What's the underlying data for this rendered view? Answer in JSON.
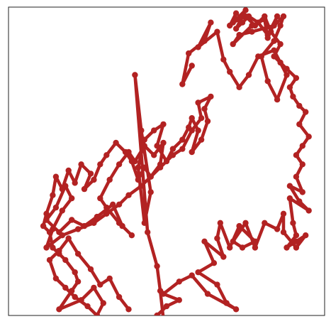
{
  "chart_data": {
    "type": "line",
    "title": "",
    "xlabel": "",
    "ylabel": "",
    "xlim": [
      0,
      100
    ],
    "ylim": [
      0,
      100
    ],
    "grid": false,
    "legend": "none",
    "axes_ticks_visible": false,
    "series": [
      {
        "color": "#b22222",
        "marker": "circle",
        "points": [
          [
            58,
            19
          ],
          [
            55,
            25
          ],
          [
            57,
            15
          ],
          [
            62,
            11
          ],
          [
            64,
            5
          ],
          [
            60,
            13
          ],
          [
            66,
            8
          ],
          [
            68,
            17
          ],
          [
            70,
            21
          ],
          [
            73,
            26
          ],
          [
            76,
            22
          ],
          [
            79,
            16
          ],
          [
            84,
            14
          ],
          [
            88,
            22
          ],
          [
            85,
            30
          ],
          [
            82,
            24
          ],
          [
            80,
            16
          ],
          [
            84,
            11
          ],
          [
            86,
            6
          ],
          [
            87,
            3
          ],
          [
            84,
            6
          ],
          [
            77,
            8
          ],
          [
            73,
            9
          ],
          [
            71,
            12
          ],
          [
            77,
            6
          ],
          [
            81,
            4
          ],
          [
            82,
            10
          ],
          [
            85,
            3
          ],
          [
            82,
            9
          ],
          [
            79,
            5
          ],
          [
            76,
            3
          ],
          [
            74,
            5
          ],
          [
            72,
            7
          ],
          [
            75,
            1
          ],
          [
            70,
            6
          ],
          [
            72,
            2
          ],
          [
            71,
            5
          ],
          [
            75,
            3
          ],
          [
            78,
            6
          ],
          [
            81,
            3
          ],
          [
            83,
            8
          ],
          [
            86,
            12
          ],
          [
            84,
            16
          ],
          [
            86,
            18
          ],
          [
            88,
            20
          ],
          [
            91,
            23
          ],
          [
            89,
            26
          ],
          [
            90,
            29
          ],
          [
            92,
            32
          ],
          [
            94,
            34
          ],
          [
            92,
            38
          ],
          [
            95,
            42
          ],
          [
            93,
            45
          ],
          [
            91,
            48
          ],
          [
            93,
            51
          ],
          [
            91,
            55
          ],
          [
            93,
            60
          ],
          [
            89,
            58
          ],
          [
            92,
            63
          ],
          [
            95,
            66
          ],
          [
            89,
            62
          ],
          [
            90,
            70
          ],
          [
            91,
            74
          ],
          [
            88,
            78
          ],
          [
            91,
            76
          ],
          [
            94,
            74
          ],
          [
            91,
            78
          ],
          [
            87,
            73
          ],
          [
            87,
            67
          ],
          [
            85,
            72
          ],
          [
            81,
            70
          ],
          [
            78,
            78
          ],
          [
            75,
            70
          ],
          [
            71,
            76
          ],
          [
            74,
            78
          ],
          [
            78,
            76
          ],
          [
            73,
            71
          ],
          [
            70,
            78
          ],
          [
            67,
            70
          ],
          [
            66,
            75
          ],
          [
            68,
            81
          ],
          [
            62,
            76
          ],
          [
            65,
            83
          ],
          [
            60,
            86
          ],
          [
            66,
            90
          ],
          [
            69,
            96
          ],
          [
            72,
            98
          ],
          [
            63,
            93
          ],
          [
            58,
            87
          ],
          [
            54,
            89
          ],
          [
            49,
            93
          ],
          [
            54,
            95
          ],
          [
            50,
            97
          ],
          [
            47,
            100
          ],
          [
            49,
            101
          ],
          [
            48,
            92
          ],
          [
            47,
            84
          ],
          [
            44,
            73
          ],
          [
            40,
            22
          ],
          [
            42,
            40
          ],
          [
            45,
            60
          ],
          [
            43,
            70
          ],
          [
            41,
            52
          ],
          [
            43,
            43
          ],
          [
            46,
            40
          ],
          [
            49,
            38
          ],
          [
            47,
            45
          ],
          [
            50,
            50
          ],
          [
            52,
            46
          ],
          [
            55,
            43
          ],
          [
            57,
            39
          ],
          [
            58,
            36
          ],
          [
            60,
            40
          ],
          [
            58,
            47
          ],
          [
            61,
            43
          ],
          [
            63,
            37
          ],
          [
            62,
            33
          ],
          [
            64,
            29
          ],
          [
            60,
            31
          ],
          [
            61,
            36
          ],
          [
            58,
            40
          ],
          [
            55,
            46
          ],
          [
            52,
            48
          ],
          [
            48,
            52
          ],
          [
            45,
            55
          ],
          [
            42,
            58
          ],
          [
            38,
            61
          ],
          [
            35,
            64
          ],
          [
            31,
            67
          ],
          [
            27,
            70
          ],
          [
            22,
            72
          ],
          [
            17,
            74
          ],
          [
            12,
            78
          ],
          [
            14,
            72
          ],
          [
            17,
            66
          ],
          [
            20,
            62
          ],
          [
            18,
            58
          ],
          [
            15,
            65
          ],
          [
            12,
            69
          ],
          [
            16,
            73
          ],
          [
            20,
            69
          ],
          [
            24,
            71
          ],
          [
            28,
            68
          ],
          [
            33,
            64
          ],
          [
            36,
            71
          ],
          [
            39,
            74
          ],
          [
            35,
            70
          ],
          [
            31,
            65
          ],
          [
            29,
            62
          ],
          [
            32,
            56
          ],
          [
            35,
            51
          ],
          [
            38,
            47
          ],
          [
            40,
            50
          ],
          [
            43,
            45
          ],
          [
            46,
            48
          ],
          [
            49,
            44
          ],
          [
            48,
            51
          ],
          [
            45,
            55
          ],
          [
            43,
            52
          ],
          [
            41,
            56
          ],
          [
            39,
            50
          ],
          [
            37,
            47
          ],
          [
            34,
            44
          ],
          [
            31,
            48
          ],
          [
            29,
            51
          ],
          [
            27,
            56
          ],
          [
            24,
            59
          ],
          [
            26,
            54
          ],
          [
            23,
            51
          ],
          [
            21,
            57
          ],
          [
            19,
            53
          ],
          [
            17,
            59
          ],
          [
            15,
            55
          ],
          [
            14,
            61
          ],
          [
            12,
            67
          ],
          [
            11,
            71
          ],
          [
            13,
            73
          ],
          [
            14,
            78
          ],
          [
            16,
            80
          ],
          [
            18,
            82
          ],
          [
            21,
            86
          ],
          [
            22,
            89
          ],
          [
            20,
            92
          ],
          [
            16,
            98
          ],
          [
            23,
            95
          ],
          [
            27,
            91
          ],
          [
            30,
            96
          ],
          [
            28,
            100
          ],
          [
            25,
            97
          ],
          [
            21,
            94
          ],
          [
            18,
            91
          ],
          [
            15,
            88
          ],
          [
            13,
            82
          ],
          [
            16,
            79
          ],
          [
            19,
            75
          ],
          [
            22,
            80
          ],
          [
            26,
            85
          ],
          [
            29,
            90
          ],
          [
            32,
            88
          ],
          [
            35,
            94
          ],
          [
            38,
            98
          ]
        ]
      }
    ]
  }
}
